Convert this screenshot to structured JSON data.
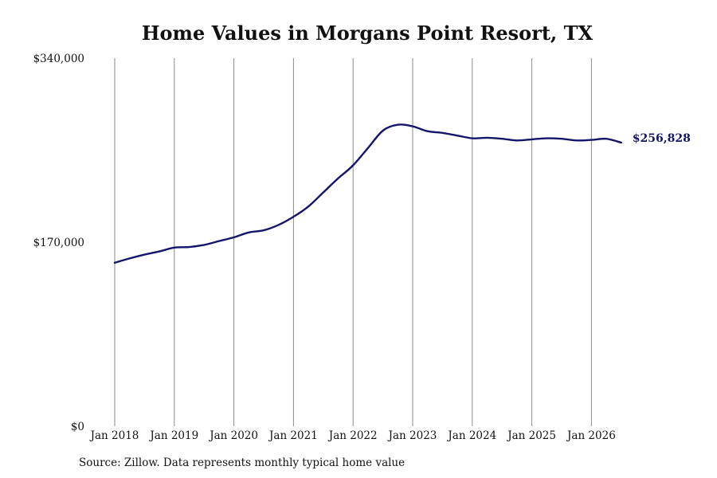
{
  "chart_data": {
    "type": "line",
    "title": "Home Values in Morgans Point Resort, TX",
    "ylim": [
      0,
      340000
    ],
    "y_ticks": [
      {
        "value": 0,
        "label": "$0"
      },
      {
        "value": 170000,
        "label": "$170,000"
      },
      {
        "value": 340000,
        "label": "$340,000"
      }
    ],
    "x_ticks": [
      {
        "year": 2018,
        "label": "Jan 2018"
      },
      {
        "year": 2019,
        "label": "Jan 2019"
      },
      {
        "year": 2020,
        "label": "Jan 2020"
      },
      {
        "year": 2021,
        "label": "Jan 2021"
      },
      {
        "year": 2022,
        "label": "Jan 2022"
      },
      {
        "year": 2023,
        "label": "Jan 2023"
      },
      {
        "year": 2024,
        "label": "Jan 2024"
      },
      {
        "year": 2025,
        "label": "Jan 2025"
      },
      {
        "year": 2026,
        "label": "Jan 2026"
      }
    ],
    "grid": "vertical",
    "series": [
      {
        "color": "#14146b",
        "end_label": "$256,828",
        "points": [
          {
            "x": "2018-01",
            "y": 151000
          },
          {
            "x": "2018-04",
            "y": 155000
          },
          {
            "x": "2018-07",
            "y": 158500
          },
          {
            "x": "2018-10",
            "y": 161500
          },
          {
            "x": "2019-01",
            "y": 165000
          },
          {
            "x": "2019-04",
            "y": 165500
          },
          {
            "x": "2019-07",
            "y": 167500
          },
          {
            "x": "2019-10",
            "y": 171000
          },
          {
            "x": "2020-01",
            "y": 174500
          },
          {
            "x": "2020-04",
            "y": 179000
          },
          {
            "x": "2020-07",
            "y": 181000
          },
          {
            "x": "2020-10",
            "y": 186000
          },
          {
            "x": "2021-01",
            "y": 193500
          },
          {
            "x": "2021-04",
            "y": 203000
          },
          {
            "x": "2021-07",
            "y": 216000
          },
          {
            "x": "2021-10",
            "y": 229000
          },
          {
            "x": "2022-01",
            "y": 241000
          },
          {
            "x": "2022-04",
            "y": 257000
          },
          {
            "x": "2022-07",
            "y": 273000
          },
          {
            "x": "2022-10",
            "y": 278500
          },
          {
            "x": "2023-01",
            "y": 277000
          },
          {
            "x": "2023-04",
            "y": 272500
          },
          {
            "x": "2023-07",
            "y": 271000
          },
          {
            "x": "2023-10",
            "y": 268500
          },
          {
            "x": "2024-01",
            "y": 266000
          },
          {
            "x": "2024-04",
            "y": 266500
          },
          {
            "x": "2024-07",
            "y": 265500
          },
          {
            "x": "2024-10",
            "y": 264000
          },
          {
            "x": "2025-01",
            "y": 265000
          },
          {
            "x": "2025-04",
            "y": 266000
          },
          {
            "x": "2025-07",
            "y": 265500
          },
          {
            "x": "2025-10",
            "y": 264000
          },
          {
            "x": "2026-01",
            "y": 264500
          },
          {
            "x": "2026-04",
            "y": 265500
          },
          {
            "x": "2026-07",
            "y": 262000
          }
        ]
      }
    ]
  },
  "footer": {
    "source": "Source: Zillow. Data represents monthly typical home value"
  }
}
